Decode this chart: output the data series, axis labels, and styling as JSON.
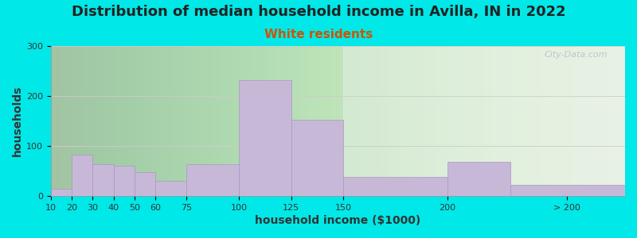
{
  "title": "Distribution of median household income in Avilla, IN in 2022",
  "subtitle": "White residents",
  "xlabel": "household income ($1000)",
  "ylabel": "households",
  "bar_labels": [
    "10",
    "20",
    "30",
    "40",
    "50",
    "60",
    "75",
    "100",
    "125",
    "150",
    "200",
    "> 200"
  ],
  "bar_values": [
    15,
    83,
    63,
    60,
    47,
    30,
    63,
    232,
    152,
    38,
    68,
    22
  ],
  "bar_lefts": [
    10,
    20,
    30,
    40,
    50,
    60,
    75,
    100,
    125,
    150,
    200,
    230
  ],
  "bar_widths": [
    10,
    10,
    10,
    10,
    10,
    15,
    25,
    25,
    25,
    50,
    30,
    55
  ],
  "bar_color": "#c8b8d8",
  "bar_edge_color": "#a898c0",
  "ylim": [
    0,
    300
  ],
  "yticks": [
    0,
    100,
    200,
    300
  ],
  "xlim_left": 10,
  "xlim_right": 285,
  "tick_positions": [
    10,
    20,
    30,
    40,
    50,
    60,
    75,
    100,
    125,
    150,
    200,
    257
  ],
  "tick_labels": [
    "10",
    "20",
    "30",
    "40",
    "50",
    "60",
    "75",
    "100",
    "125",
    "150",
    "200",
    "> 200"
  ],
  "background_outer": "#00e8e8",
  "background_inner_color": "#d8eed0",
  "title_fontsize": 13,
  "subtitle_fontsize": 11,
  "subtitle_color": "#cc5500",
  "axis_label_fontsize": 10,
  "tick_fontsize": 8,
  "watermark_text": "City-Data.com",
  "watermark_color": "#b0b8c8"
}
